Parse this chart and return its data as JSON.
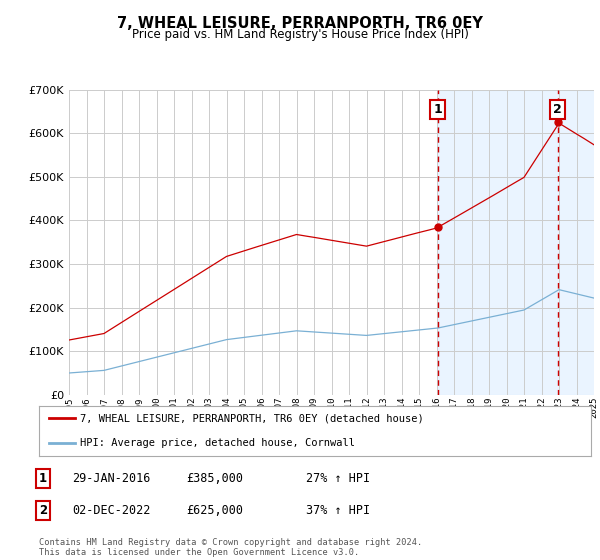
{
  "title": "7, WHEAL LEISURE, PERRANPORTH, TR6 0EY",
  "subtitle": "Price paid vs. HM Land Registry's House Price Index (HPI)",
  "legend_line1": "7, WHEAL LEISURE, PERRANPORTH, TR6 0EY (detached house)",
  "legend_line2": "HPI: Average price, detached house, Cornwall",
  "annotation1_label": "1",
  "annotation1_date": "29-JAN-2016",
  "annotation1_price": "£385,000",
  "annotation1_hpi": "27% ↑ HPI",
  "annotation2_label": "2",
  "annotation2_date": "02-DEC-2022",
  "annotation2_price": "£625,000",
  "annotation2_hpi": "37% ↑ HPI",
  "footer": "Contains HM Land Registry data © Crown copyright and database right 2024.\nThis data is licensed under the Open Government Licence v3.0.",
  "red_color": "#cc0000",
  "blue_color": "#7ab0d4",
  "plot_bg_color": "#ffffff",
  "grid_color": "#cccccc",
  "shade_color": "#ddeeff",
  "ylim_min": 0,
  "ylim_max": 700000,
  "year_start": 1995,
  "year_end": 2025,
  "sale1_year": 2016.08,
  "sale2_year": 2022.92,
  "sale1_value": 385000,
  "sale2_value": 625000
}
